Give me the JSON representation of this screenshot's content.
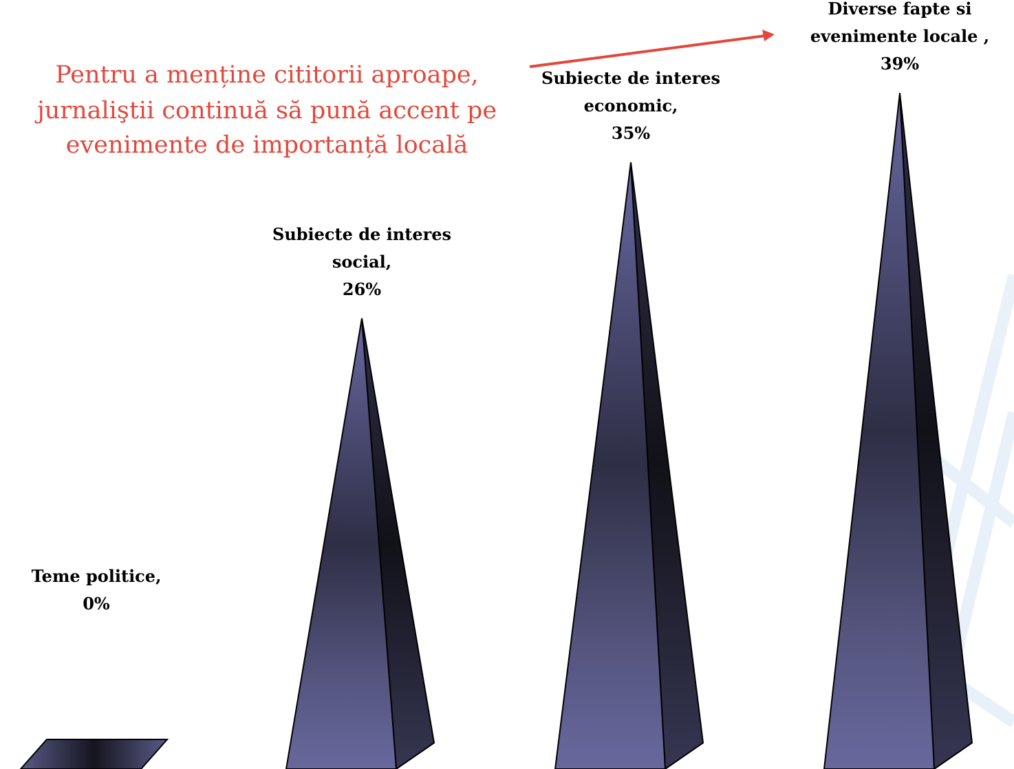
{
  "chart_data": {
    "type": "pyramid",
    "categories": [
      "Teme politice,",
      "Subiecte de interes social,",
      "Subiecte de interes economic,",
      "Diverse fapte si evenimente locale ,"
    ],
    "values": [
      0,
      26,
      35,
      39
    ],
    "value_labels": [
      "0%",
      "26%",
      "35%",
      "39%"
    ],
    "color": "#62629a",
    "annotation": [
      "Pentru a menține cititorii aproape,",
      "jurnaliştii continuă să pună accent pe",
      "evenimente de importanță locală"
    ],
    "annotation_color": "#e2473b"
  }
}
